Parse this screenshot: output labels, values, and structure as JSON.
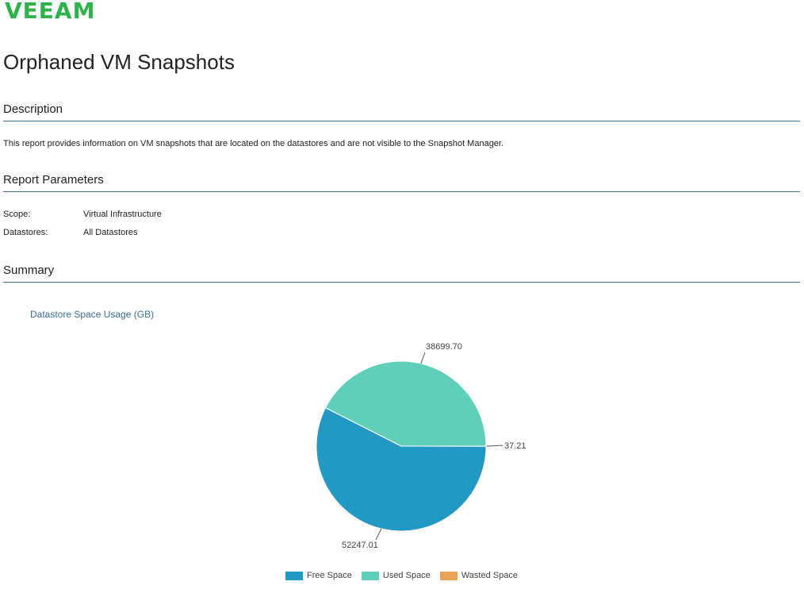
{
  "brand": {
    "logo_text": "VEEAM",
    "color": "#2eb24a"
  },
  "report": {
    "title": "Orphaned VM Snapshots"
  },
  "sections": {
    "description": {
      "heading": "Description",
      "text": "This report provides information on VM snapshots that are located on the datastores and are not visible to the Snapshot Manager."
    },
    "parameters": {
      "heading": "Report Parameters",
      "items": [
        {
          "label": "Scope:",
          "value": "Virtual Infrastructure"
        },
        {
          "label": "Datastores:",
          "value": "All Datastores"
        }
      ]
    },
    "summary": {
      "heading": "Summary"
    }
  },
  "chart_data": {
    "type": "pie",
    "title": "Datastore Space Usage (GB)",
    "slices": [
      {
        "name": "Free Space",
        "value": 52247.01,
        "color": "#2298c4",
        "label": "52247.01"
      },
      {
        "name": "Used Space",
        "value": 38699.7,
        "color": "#5fcfb9",
        "label": "38699.70"
      },
      {
        "name": "Wasted Space",
        "value": 37.21,
        "color": "#e8a55a",
        "label": "37.21"
      }
    ],
    "legend_position": "bottom"
  }
}
